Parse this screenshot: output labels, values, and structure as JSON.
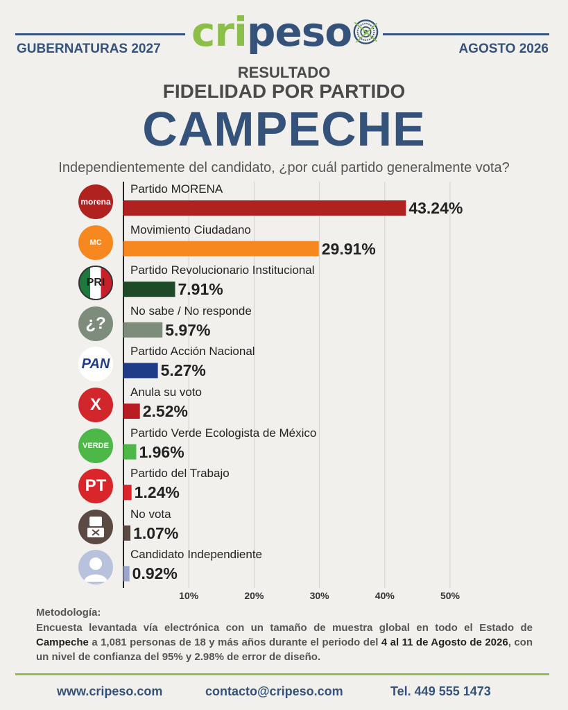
{
  "header": {
    "left_label": "GUBERNATURAS 2027",
    "right_label": "AGOSTO 2026",
    "logo_text_green": "cri",
    "logo_text_blue": "peso",
    "resultado": "RESULTADO",
    "subtitle": "FIDELIDAD POR PARTIDO",
    "title": "CAMPECHE",
    "question": "Independientemente del candidato, ¿por cuál partido generalmente vota?"
  },
  "chart_data": {
    "type": "bar",
    "orientation": "horizontal",
    "categories": [
      "Partido MORENA",
      "Movimiento Ciudadano",
      "Partido Revolucionario Institucional",
      "No sabe / No responde",
      "Partido Acción Nacional",
      "Anula su voto",
      "Partido Verde Ecologista de México",
      "Partido del Trabajo",
      "No vota",
      "Candidato Independiente"
    ],
    "values": [
      43.24,
      29.91,
      7.91,
      5.97,
      5.27,
      2.52,
      1.96,
      1.24,
      1.07,
      0.92
    ],
    "value_labels": [
      "43.24%",
      "29.91%",
      "7.91%",
      "5.97%",
      "5.27%",
      "2.52%",
      "1.96%",
      "1.24%",
      "1.07%",
      "0.92%"
    ],
    "colors": [
      "#b0221f",
      "#f7881f",
      "#1f4a28",
      "#7e8c7c",
      "#1e3c88",
      "#b81d24",
      "#4db848",
      "#d9262b",
      "#5a4a43",
      "#9aa7c9"
    ],
    "icons": [
      "morena-icon",
      "movimiento-ciudadano-icon",
      "pri-icon",
      "question-icon",
      "pan-icon",
      "x-icon",
      "verde-icon",
      "pt-icon",
      "ballot-icon",
      "person-icon"
    ],
    "icon_text": [
      "morena",
      "MC",
      "PRI",
      "¿?",
      "PAN",
      "X",
      "VERDE",
      "PT",
      "",
      ""
    ],
    "xticks": [
      10,
      20,
      30,
      40,
      50
    ],
    "xtick_labels": [
      "10%",
      "20%",
      "30%",
      "40%",
      "50%"
    ],
    "xlim": [
      0,
      50
    ],
    "grid": true
  },
  "methodology": {
    "title": "Metodología:",
    "text_1": "Encuesta levantada vía electrónica con un tamaño de muestra global en todo el Estado de ",
    "state": "Campeche",
    "text_2": " a 1,081 personas de 18 y más años durante el periodo del ",
    "period": "4 al 11 de Agosto de 2026",
    "text_3": ", con un nivel de confianza del 95% y 2.98% de error de diseño."
  },
  "footer": {
    "website": "www.cripeso.com",
    "email": "contacto@cripeso.com",
    "phone": "Tel. 449 555 1473"
  }
}
